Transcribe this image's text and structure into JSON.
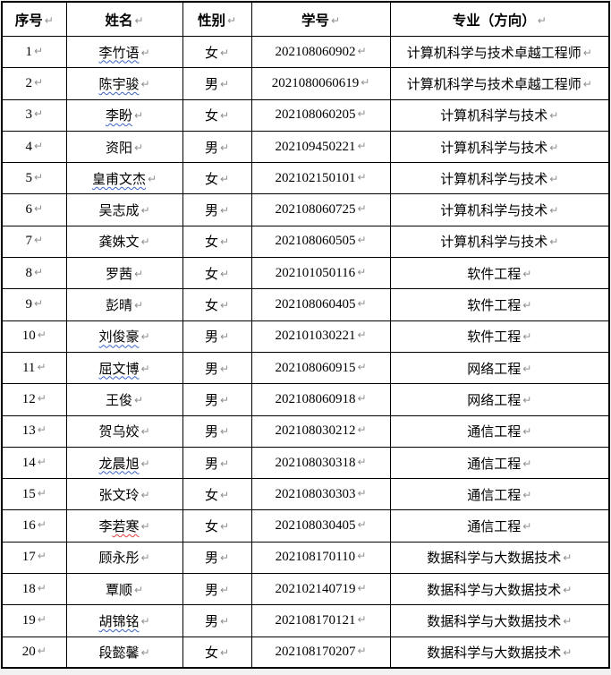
{
  "table": {
    "paragraph_mark": "↵",
    "columns": [
      "序号",
      "姓名",
      "性别",
      "学号",
      "专业（方向）"
    ],
    "rows": [
      {
        "no": "1",
        "name_pre": "",
        "name_marked": "李竹语",
        "mark_color": "blue",
        "gender": "女",
        "student_id": "202108060902",
        "major": "计算机科学与技术卓越工程师"
      },
      {
        "no": "2",
        "name_pre": "",
        "name_marked": "陈宇骏",
        "mark_color": "blue",
        "gender": "男",
        "student_id": "2021080060619",
        "major": "计算机科学与技术卓越工程师"
      },
      {
        "no": "3",
        "name_pre": "",
        "name_marked": "李盼",
        "mark_color": "blue",
        "gender": "女",
        "student_id": "202108060205",
        "major": "计算机科学与技术"
      },
      {
        "no": "4",
        "name_pre": "资阳",
        "name_marked": "",
        "mark_color": "",
        "gender": "男",
        "student_id": "202109450221",
        "major": "计算机科学与技术"
      },
      {
        "no": "5",
        "name_pre": "",
        "name_marked": "皇甫文杰",
        "mark_color": "blue",
        "gender": "女",
        "student_id": "202102150101",
        "major": "计算机科学与技术"
      },
      {
        "no": "6",
        "name_pre": "吴志成",
        "name_marked": "",
        "mark_color": "",
        "gender": "男",
        "student_id": "202108060725",
        "major": "计算机科学与技术"
      },
      {
        "no": "7",
        "name_pre": "龚姝文",
        "name_marked": "",
        "mark_color": "",
        "gender": "女",
        "student_id": "202108060505",
        "major": "计算机科学与技术"
      },
      {
        "no": "8",
        "name_pre": "罗茜",
        "name_marked": "",
        "mark_color": "",
        "gender": "女",
        "student_id": "202101050116",
        "major": "软件工程"
      },
      {
        "no": "9",
        "name_pre": "彭晴",
        "name_marked": "",
        "mark_color": "",
        "gender": "女",
        "student_id": "202108060405",
        "major": "软件工程"
      },
      {
        "no": "10",
        "name_pre": "",
        "name_marked": "刘俊豪",
        "mark_color": "blue",
        "gender": "男",
        "student_id": "202101030221",
        "major": "软件工程"
      },
      {
        "no": "11",
        "name_pre": "",
        "name_marked": "屈文博",
        "mark_color": "blue",
        "gender": "男",
        "student_id": "202108060915",
        "major": "网络工程"
      },
      {
        "no": "12",
        "name_pre": "王俊",
        "name_marked": "",
        "mark_color": "",
        "gender": "男",
        "student_id": "202108060918",
        "major": "网络工程"
      },
      {
        "no": "13",
        "name_pre": "贺乌姣",
        "name_marked": "",
        "mark_color": "",
        "gender": "男",
        "student_id": "202108030212",
        "major": "通信工程"
      },
      {
        "no": "14",
        "name_pre": "",
        "name_marked": "龙晨旭",
        "mark_color": "blue",
        "gender": "男",
        "student_id": "202108030318",
        "major": "通信工程"
      },
      {
        "no": "15",
        "name_pre": "张文玲",
        "name_marked": "",
        "mark_color": "",
        "gender": "女",
        "student_id": "202108030303",
        "major": "通信工程"
      },
      {
        "no": "16",
        "name_pre": "李",
        "name_marked": "若寒",
        "mark_color": "red",
        "gender": "女",
        "student_id": "202108030405",
        "major": "通信工程"
      },
      {
        "no": "17",
        "name_pre": "顾永彤",
        "name_marked": "",
        "mark_color": "",
        "gender": "男",
        "student_id": "202108170110",
        "major": "数据科学与大数据技术"
      },
      {
        "no": "18",
        "name_pre": "覃顺",
        "name_marked": "",
        "mark_color": "",
        "gender": "男",
        "student_id": "202102140719",
        "major": "数据科学与大数据技术"
      },
      {
        "no": "19",
        "name_pre": "",
        "name_marked": "胡锦铭",
        "mark_color": "blue",
        "gender": "男",
        "student_id": "202108170121",
        "major": "数据科学与大数据技术"
      },
      {
        "no": "20",
        "name_pre": "段懿馨",
        "name_marked": "",
        "mark_color": "",
        "gender": "女",
        "student_id": "202108170207",
        "major": "数据科学与大数据技术"
      }
    ]
  },
  "colors": {
    "spellcheck_blue": "#3a62c8",
    "spellcheck_red": "#e23b3b",
    "paragraph_mark_gray": "#8f8f8f",
    "border_black": "#000000"
  }
}
